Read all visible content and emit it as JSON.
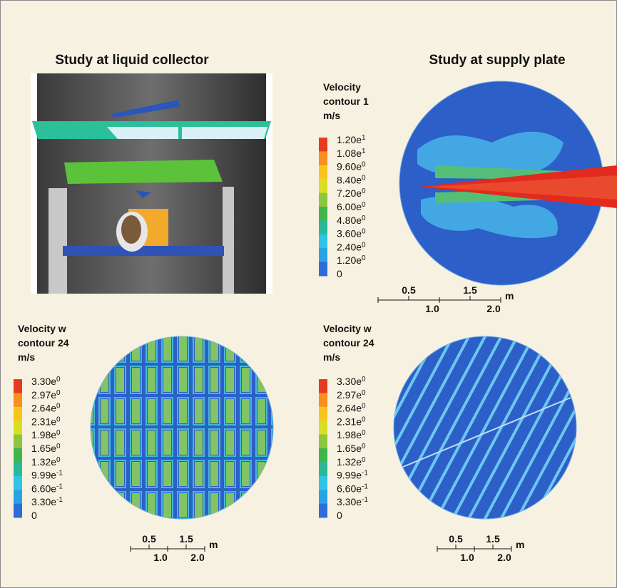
{
  "titles": {
    "left": "Study at liquid collector",
    "right": "Study at supply plate"
  },
  "legends": [
    {
      "title": [
        "Velocity",
        "contour 1",
        "m/s"
      ],
      "labels": [
        {
          "base": "1.20e",
          "exp": "1"
        },
        {
          "base": "1.08e",
          "exp": "1"
        },
        {
          "base": "9.60e",
          "exp": "0"
        },
        {
          "base": "8.40e",
          "exp": "0"
        },
        {
          "base": "7.20e",
          "exp": "0"
        },
        {
          "base": "6.00e",
          "exp": "0"
        },
        {
          "base": "4.80e",
          "exp": "0"
        },
        {
          "base": "3.60e",
          "exp": "0"
        },
        {
          "base": "2.40e",
          "exp": "0"
        },
        {
          "base": "1.20e",
          "exp": "0"
        },
        {
          "base": "0"
        }
      ]
    },
    {
      "title": [
        "Velocity w",
        "contour 24",
        "m/s"
      ],
      "labels": [
        {
          "base": "3.30e",
          "exp": "0"
        },
        {
          "base": "2.97e",
          "exp": "0"
        },
        {
          "base": "2.64e",
          "exp": "0"
        },
        {
          "base": "2.31e",
          "exp": "0"
        },
        {
          "base": "1.98e",
          "exp": "0"
        },
        {
          "base": "1.65e",
          "exp": "0"
        },
        {
          "base": "1.32e",
          "exp": "0"
        },
        {
          "base": "9.99e",
          "exp": "-1"
        },
        {
          "base": "6.60e",
          "exp": "-1"
        },
        {
          "base": "3.30e",
          "exp": "-1"
        },
        {
          "base": "0"
        }
      ]
    },
    {
      "title": [
        "Velocity w",
        "contour 24",
        "m/s"
      ],
      "labels": [
        {
          "base": "3.30e",
          "exp": "0"
        },
        {
          "base": "2.97e",
          "exp": "0"
        },
        {
          "base": "2.64e",
          "exp": "0"
        },
        {
          "base": "2.31e",
          "exp": "0"
        },
        {
          "base": "1.98e",
          "exp": "0"
        },
        {
          "base": "1.65e",
          "exp": "0"
        },
        {
          "base": "1.32e",
          "exp": "0"
        },
        {
          "base": "9.99e",
          "exp": "-1"
        },
        {
          "base": "6.60e",
          "exp": "-1"
        },
        {
          "base": "3.30e",
          "exp": "-1"
        },
        {
          "base": "0"
        }
      ]
    }
  ],
  "scale_bars": [
    {
      "top": [
        "0.5",
        "1.5"
      ],
      "bottom": [
        "1.0",
        "2.0"
      ],
      "unit": "m"
    },
    {
      "top": [
        "0.5",
        "1.5"
      ],
      "bottom": [
        "1.0",
        "2.0"
      ],
      "unit": "m"
    },
    {
      "top": [
        "0.5",
        "1.5"
      ],
      "bottom": [
        "1.0",
        "2.0"
      ],
      "unit": "m"
    }
  ]
}
